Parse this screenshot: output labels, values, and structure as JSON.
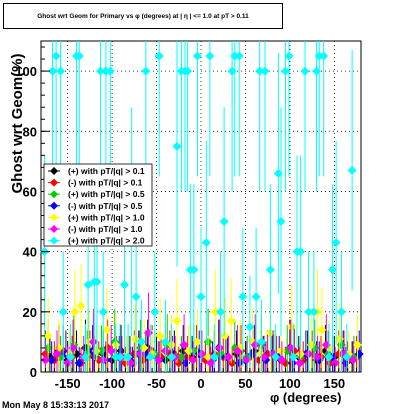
{
  "title": "Ghost wrt Geom for Primary vs φ (degrees) at | η | <= 1.0 at pT > 0.11",
  "footer": "Mon May  8 15:33:13 2017",
  "chart_data": {
    "type": "scatter",
    "xlabel": "φ (degrees)",
    "ylabel": "Ghost wrt Geom(%)",
    "xlim": [
      -180,
      180
    ],
    "ylim": [
      0,
      110
    ],
    "grid": true,
    "legend_placement": "left",
    "x_ticks": [
      "-150",
      "-100",
      "-50",
      "0",
      "50",
      "100",
      "150"
    ],
    "y_ticks": [
      "0",
      "20",
      "40",
      "60",
      "80",
      "100"
    ],
    "series": [
      {
        "name": "(+) with pT/|q| > 0.1",
        "color": "#000000",
        "points": [
          [
            -170,
            5
          ],
          [
            -160,
            7
          ],
          [
            -150,
            4
          ],
          [
            -140,
            6
          ],
          [
            -130,
            8
          ],
          [
            -120,
            5
          ],
          [
            -110,
            6
          ],
          [
            -100,
            4
          ],
          [
            -90,
            7
          ],
          [
            -80,
            5
          ],
          [
            -70,
            6
          ],
          [
            -60,
            8
          ],
          [
            -50,
            5
          ],
          [
            -40,
            4
          ],
          [
            -30,
            6
          ],
          [
            -20,
            7
          ],
          [
            -10,
            5
          ],
          [
            0,
            6
          ],
          [
            10,
            4
          ],
          [
            20,
            8
          ],
          [
            30,
            5
          ],
          [
            40,
            6
          ],
          [
            50,
            4
          ],
          [
            60,
            7
          ],
          [
            70,
            5
          ],
          [
            80,
            6
          ],
          [
            90,
            4
          ],
          [
            100,
            8
          ],
          [
            110,
            5
          ],
          [
            120,
            6
          ],
          [
            130,
            4
          ],
          [
            140,
            7
          ],
          [
            150,
            5
          ],
          [
            160,
            6
          ],
          [
            170,
            4
          ]
        ]
      },
      {
        "name": "(-) with pT/|q| > 0.1",
        "color": "#ff0000",
        "points": [
          [
            -175,
            6
          ],
          [
            -165,
            4
          ],
          [
            -155,
            7
          ],
          [
            -145,
            5
          ],
          [
            -135,
            3
          ],
          [
            -125,
            6
          ],
          [
            -115,
            4
          ],
          [
            -105,
            8
          ],
          [
            -95,
            5
          ],
          [
            -85,
            3
          ],
          [
            -75,
            6
          ],
          [
            -65,
            4
          ],
          [
            -55,
            7
          ],
          [
            -45,
            5
          ],
          [
            -35,
            6
          ],
          [
            -25,
            3
          ],
          [
            -15,
            5
          ],
          [
            -5,
            7
          ],
          [
            5,
            4
          ],
          [
            15,
            6
          ],
          [
            25,
            5
          ],
          [
            35,
            3
          ],
          [
            45,
            7
          ],
          [
            55,
            5
          ],
          [
            65,
            4
          ],
          [
            75,
            6
          ],
          [
            85,
            5
          ],
          [
            95,
            3
          ],
          [
            105,
            7
          ],
          [
            115,
            4
          ],
          [
            125,
            6
          ],
          [
            135,
            5
          ],
          [
            145,
            3
          ],
          [
            155,
            6
          ],
          [
            165,
            4
          ],
          [
            175,
            5
          ]
        ]
      },
      {
        "name": "(+) with pT/|q| > 0.5",
        "color": "#00cc00",
        "points": [
          [
            -172,
            8
          ],
          [
            -158,
            5
          ],
          [
            -143,
            9
          ],
          [
            -128,
            6
          ],
          [
            -112,
            7
          ],
          [
            -97,
            10
          ],
          [
            -82,
            5
          ],
          [
            -68,
            8
          ],
          [
            -52,
            6
          ],
          [
            -38,
            9
          ],
          [
            -22,
            5
          ],
          [
            -8,
            7
          ],
          [
            8,
            10
          ],
          [
            22,
            6
          ],
          [
            38,
            8
          ],
          [
            52,
            5
          ],
          [
            68,
            9
          ],
          [
            82,
            6
          ],
          [
            97,
            7
          ],
          [
            112,
            5
          ],
          [
            128,
            8
          ],
          [
            143,
            6
          ],
          [
            158,
            9
          ],
          [
            172,
            5
          ]
        ]
      },
      {
        "name": "(-) with pT/|q| > 0.5",
        "color": "#0000ff",
        "points": [
          [
            -168,
            4
          ],
          [
            -152,
            6
          ],
          [
            -137,
            3
          ],
          [
            -122,
            7
          ],
          [
            -107,
            4
          ],
          [
            -92,
            5
          ],
          [
            -77,
            3
          ],
          [
            -62,
            6
          ],
          [
            -47,
            4
          ],
          [
            -32,
            5
          ],
          [
            -17,
            3
          ],
          [
            -2,
            6
          ],
          [
            13,
            4
          ],
          [
            28,
            5
          ],
          [
            43,
            3
          ],
          [
            58,
            6
          ],
          [
            73,
            4
          ],
          [
            88,
            5
          ],
          [
            103,
            3
          ],
          [
            118,
            6
          ],
          [
            133,
            4
          ],
          [
            148,
            5
          ],
          [
            163,
            3
          ],
          [
            178,
            6
          ]
        ]
      },
      {
        "name": "(+) with pT/|q| > 1.0",
        "color": "#ffff00",
        "points": [
          [
            -172,
            12
          ],
          [
            -160,
            8
          ],
          [
            -148,
            6
          ],
          [
            -142,
            20
          ],
          [
            -135,
            22
          ],
          [
            -126,
            10
          ],
          [
            -118,
            7
          ],
          [
            -106,
            14
          ],
          [
            -96,
            9
          ],
          [
            -84,
            5
          ],
          [
            -74,
            11
          ],
          [
            -64,
            8
          ],
          [
            -55,
            6
          ],
          [
            -46,
            12
          ],
          [
            -33,
            9
          ],
          [
            -27,
            17
          ],
          [
            -14,
            7
          ],
          [
            -4,
            10
          ],
          [
            8,
            5
          ],
          [
            16,
            20
          ],
          [
            27,
            12
          ],
          [
            34,
            17
          ],
          [
            44,
            8
          ],
          [
            58,
            10
          ],
          [
            67,
            6
          ],
          [
            78,
            13
          ],
          [
            90,
            7
          ],
          [
            102,
            15
          ],
          [
            112,
            6
          ],
          [
            124,
            9
          ],
          [
            131,
            20
          ],
          [
            136,
            14
          ],
          [
            144,
            8
          ],
          [
            156,
            11
          ],
          [
            166,
            6
          ],
          [
            176,
            9
          ]
        ]
      },
      {
        "name": "(-) with pT/|q| > 1.0",
        "color": "#ff00ff",
        "points": [
          [
            -175,
            4
          ],
          [
            -162,
            6
          ],
          [
            -150,
            3
          ],
          [
            -144,
            8
          ],
          [
            -132,
            5
          ],
          [
            -121,
            10
          ],
          [
            -110,
            4
          ],
          [
            -101,
            7
          ],
          [
            -89,
            5
          ],
          [
            -79,
            3
          ],
          [
            -69,
            6
          ],
          [
            -59,
            13
          ],
          [
            -48,
            4
          ],
          [
            -40,
            7
          ],
          [
            -29,
            5
          ],
          [
            -19,
            9
          ],
          [
            -9,
            4
          ],
          [
            1,
            6
          ],
          [
            11,
            3
          ],
          [
            21,
            8
          ],
          [
            31,
            5
          ],
          [
            41,
            7
          ],
          [
            51,
            4
          ],
          [
            61,
            9
          ],
          [
            71,
            5
          ],
          [
            81,
            6
          ],
          [
            91,
            4
          ],
          [
            101,
            8
          ],
          [
            111,
            3
          ],
          [
            121,
            6
          ],
          [
            131,
            5
          ],
          [
            141,
            9
          ],
          [
            151,
            3
          ],
          [
            161,
            6
          ],
          [
            171,
            4
          ]
        ]
      },
      {
        "name": "(+) with pT/|q| > 2.0",
        "color": "#00ffff",
        "points": [
          [
            -176,
            40
          ],
          [
            -167,
            100
          ],
          [
            -163,
            105
          ],
          [
            -158,
            100
          ],
          [
            -155,
            20
          ],
          [
            -147,
            5
          ],
          [
            -140,
            105
          ],
          [
            -137,
            105
          ],
          [
            -130,
            5
          ],
          [
            -127,
            29
          ],
          [
            -120,
            30
          ],
          [
            -117,
            30
          ],
          [
            -113,
            100
          ],
          [
            -110,
            20
          ],
          [
            -107,
            100
          ],
          [
            -102,
            100
          ],
          [
            -96,
            5
          ],
          [
            -91,
            5
          ],
          [
            -86,
            29
          ],
          [
            -82,
            5
          ],
          [
            -78,
            50
          ],
          [
            -73,
            25
          ],
          [
            -67,
            10
          ],
          [
            -62,
            100
          ],
          [
            -57,
            5
          ],
          [
            -52,
            20
          ],
          [
            -47,
            105
          ],
          [
            -40,
            10
          ],
          [
            -33,
            5
          ],
          [
            -27,
            75
          ],
          [
            -22,
            100
          ],
          [
            -18,
            100
          ],
          [
            -15,
            100
          ],
          [
            -12,
            34
          ],
          [
            -8,
            34
          ],
          [
            -4,
            105
          ],
          [
            0,
            25
          ],
          [
            6,
            43
          ],
          [
            10,
            105
          ],
          [
            15,
            5
          ],
          [
            22,
            20
          ],
          [
            26,
            50
          ],
          [
            35,
            100
          ],
          [
            38,
            105
          ],
          [
            43,
            105
          ],
          [
            47,
            25
          ],
          [
            55,
            15
          ],
          [
            62,
            25
          ],
          [
            66,
            100
          ],
          [
            68,
            10
          ],
          [
            72,
            100
          ],
          [
            78,
            34
          ],
          [
            84,
            5
          ],
          [
            87,
            66
          ],
          [
            90,
            50
          ],
          [
            95,
            100
          ],
          [
            99,
            105
          ],
          [
            104,
            5
          ],
          [
            108,
            40
          ],
          [
            112,
            40
          ],
          [
            117,
            100
          ],
          [
            121,
            20
          ],
          [
            127,
            20
          ],
          [
            130,
            100
          ],
          [
            133,
            105
          ],
          [
            138,
            105
          ],
          [
            144,
            5
          ],
          [
            148,
            34
          ],
          [
            152,
            43
          ],
          [
            158,
            20
          ],
          [
            164,
            5
          ],
          [
            170,
            67
          ]
        ]
      }
    ]
  }
}
